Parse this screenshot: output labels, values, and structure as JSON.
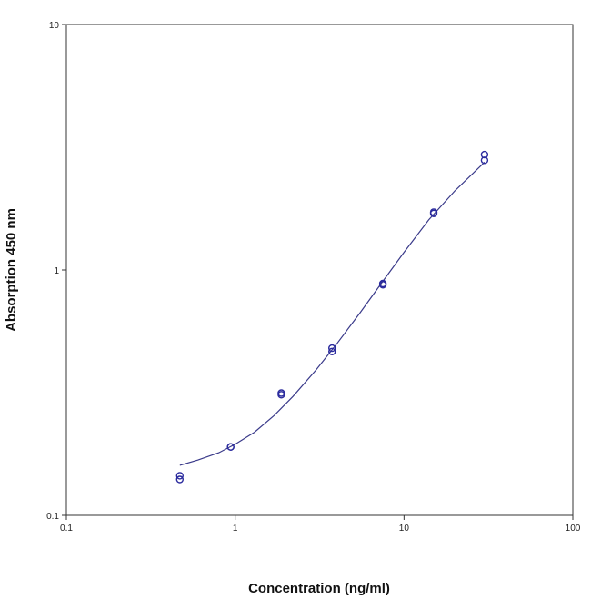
{
  "chart_data": {
    "type": "scatter",
    "title": "",
    "xlabel": "Concentration (ng/ml)",
    "ylabel": "Absorption 450 nm",
    "xscale": "log",
    "yscale": "log",
    "xlim": [
      0.1,
      100
    ],
    "ylim": [
      0.1,
      10
    ],
    "x_ticks": [
      0.1,
      1,
      10,
      100
    ],
    "x_tick_labels": [
      "0.1",
      "1",
      "10",
      "100"
    ],
    "y_ticks": [
      0.1,
      1,
      10
    ],
    "y_tick_labels": [
      "0.1",
      "1",
      "10"
    ],
    "grid": false,
    "legend": "none",
    "colors": {
      "points": "#2b2b9e",
      "fit_line": "#3a3a8a",
      "frame": "#333333"
    },
    "series": [
      {
        "marker": "circle-open",
        "points": [
          [
            0.47,
            0.145
          ],
          [
            0.47,
            0.14
          ],
          [
            0.94,
            0.19
          ],
          [
            0.94,
            0.19
          ],
          [
            1.875,
            0.31
          ],
          [
            1.875,
            0.315
          ],
          [
            3.75,
            0.465
          ],
          [
            3.75,
            0.48
          ],
          [
            7.5,
            0.87
          ],
          [
            7.5,
            0.88
          ],
          [
            15,
            1.7
          ],
          [
            15,
            1.72
          ],
          [
            30,
            2.8
          ],
          [
            30,
            2.95
          ]
        ]
      },
      {
        "marker": "none",
        "line": "fit-curve",
        "points": [
          [
            0.47,
            0.16
          ],
          [
            0.6,
            0.168
          ],
          [
            0.8,
            0.18
          ],
          [
            1.0,
            0.195
          ],
          [
            1.3,
            0.218
          ],
          [
            1.7,
            0.255
          ],
          [
            2.2,
            0.305
          ],
          [
            3.0,
            0.39
          ],
          [
            4.0,
            0.5
          ],
          [
            5.5,
            0.67
          ],
          [
            7.5,
            0.9
          ],
          [
            10,
            1.18
          ],
          [
            14,
            1.6
          ],
          [
            20,
            2.1
          ],
          [
            30,
            2.75
          ]
        ]
      }
    ]
  }
}
